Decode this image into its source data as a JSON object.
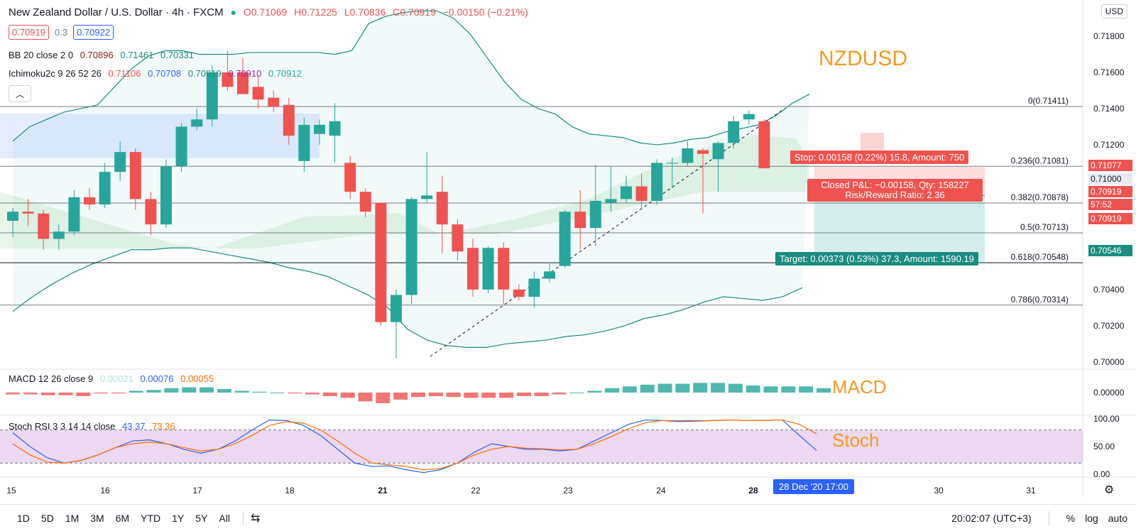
{
  "header": {
    "symbol": "New Zealand Dollar / U.S. Dollar · 4h · FXCM",
    "open": "O0.71069",
    "high": "H0.71225",
    "low": "L0.70836",
    "close": "C0.70919",
    "change": "−0.00150 (−0.21%)",
    "bid": "0.70919",
    "spread": "0.3",
    "ask": "0.70922"
  },
  "indicators": {
    "bb": {
      "name": "BB 20 close 2 0",
      "v1": "0.70896",
      "v2": "0.71461",
      "v3": "0.70331"
    },
    "ichimoku": {
      "name": "Ichimoku2c 9 26 52 26",
      "v1": "0.71106",
      "v2": "0.70708",
      "v3": "0.70919",
      "v4": "0.70910",
      "v5": "0.70912"
    },
    "macd": {
      "name": "MACD 12 26 close 9",
      "v1": "0.00021",
      "v2": "0.00076",
      "v3": "0.00055"
    },
    "stoch": {
      "name": "Stoch RSI 3 3 14 14 close",
      "v1": "43.37",
      "v2": "73.36"
    }
  },
  "labels": {
    "pair": "NZDUSD",
    "macd": "MACD",
    "stoch": "Stoch"
  },
  "currency": "USD",
  "colors": {
    "up": "#26a69a",
    "down": "#ef5350",
    "bb": "#1b8c7e",
    "label": "#f59a23",
    "blue": "#2962ff"
  },
  "fib": [
    {
      "label": "0(0.71411)",
      "price": 0.71411
    },
    {
      "label": "0.236(0.71081)",
      "price": 0.71081
    },
    {
      "label": "0.382(0.70878)",
      "price": 0.70878
    },
    {
      "label": "0.5(0.70713)",
      "price": 0.70713
    },
    {
      "label": "0.618(0.70548)",
      "price": 0.70548
    },
    {
      "label": "0.786(0.70314)",
      "price": 0.70314
    }
  ],
  "trade": {
    "stop": "Stop: 0.00158 (0.22%) 15.8, Amount: 750",
    "pnl": "Closed P&L: −0.00158, Qty: 158227",
    "rr": "Risk/Reward Ratio: 2.36",
    "target": "Target: 0.00373 (0.53%) 37.3, Amount: 1590.19"
  },
  "price_axis": {
    "ticks": [
      "0.71800",
      "0.71600",
      "0.71400",
      "0.71200",
      "0.71000",
      "0.70800",
      "0.70600",
      "0.70400",
      "0.70200",
      "0.70000"
    ],
    "tags": [
      {
        "text": "0.71077",
        "color": "#ef5350"
      },
      {
        "text": "0.71000",
        "color": "#e8eaf0"
      },
      {
        "text": "0.70919",
        "color": "#ef5350"
      },
      {
        "text": "57:52",
        "color": "#ef5350"
      },
      {
        "text": "0.70919",
        "color": "#ef5350"
      },
      {
        "text": "0.70546",
        "color": "#26a69a"
      }
    ],
    "macd_tick": "0.00000",
    "stoch_ticks": [
      "100.00",
      "50.00",
      "0.00"
    ]
  },
  "time_axis": {
    "ticks": [
      "15",
      "16",
      "17",
      "18",
      "21",
      "22",
      "23",
      "24",
      "28",
      "30",
      "31"
    ],
    "cursor_label": "28 Dec '20   17:00"
  },
  "bottom": {
    "timeframes": [
      "1D",
      "5D",
      "1M",
      "3M",
      "6M",
      "YTD",
      "1Y",
      "5Y",
      "All"
    ],
    "clock": "20:02:07 (UTC+3)",
    "percent": "%",
    "log": "log",
    "auto": "auto"
  },
  "chart_data": {
    "type": "candlestick",
    "timeframe": "4h",
    "candles": [
      {
        "o": 0.7078,
        "h": 0.7085,
        "l": 0.7069,
        "c": 0.7083
      },
      {
        "o": 0.7083,
        "h": 0.709,
        "l": 0.7075,
        "c": 0.7082
      },
      {
        "o": 0.7082,
        "h": 0.7084,
        "l": 0.7062,
        "c": 0.7068
      },
      {
        "o": 0.7068,
        "h": 0.7076,
        "l": 0.7062,
        "c": 0.7072
      },
      {
        "o": 0.7072,
        "h": 0.7095,
        "l": 0.707,
        "c": 0.7091
      },
      {
        "o": 0.7091,
        "h": 0.7096,
        "l": 0.7084,
        "c": 0.7087
      },
      {
        "o": 0.7087,
        "h": 0.711,
        "l": 0.7085,
        "c": 0.7105
      },
      {
        "o": 0.7105,
        "h": 0.7122,
        "l": 0.71,
        "c": 0.7116
      },
      {
        "o": 0.7116,
        "h": 0.7118,
        "l": 0.7084,
        "c": 0.709
      },
      {
        "o": 0.709,
        "h": 0.7094,
        "l": 0.707,
        "c": 0.7076
      },
      {
        "o": 0.7076,
        "h": 0.7112,
        "l": 0.7074,
        "c": 0.7108
      },
      {
        "o": 0.7108,
        "h": 0.7132,
        "l": 0.7105,
        "c": 0.713
      },
      {
        "o": 0.713,
        "h": 0.714,
        "l": 0.7128,
        "c": 0.7134
      },
      {
        "o": 0.7134,
        "h": 0.7164,
        "l": 0.713,
        "c": 0.716
      },
      {
        "o": 0.716,
        "h": 0.7172,
        "l": 0.715,
        "c": 0.7152
      },
      {
        "o": 0.716,
        "h": 0.7168,
        "l": 0.7148,
        "c": 0.7148
      },
      {
        "o": 0.7152,
        "h": 0.7158,
        "l": 0.714,
        "c": 0.7145
      },
      {
        "o": 0.7146,
        "h": 0.715,
        "l": 0.7138,
        "c": 0.7141
      },
      {
        "o": 0.7142,
        "h": 0.7146,
        "l": 0.712,
        "c": 0.7125
      },
      {
        "o": 0.7111,
        "h": 0.7135,
        "l": 0.7105,
        "c": 0.7131
      },
      {
        "o": 0.7126,
        "h": 0.7134,
        "l": 0.712,
        "c": 0.7131
      },
      {
        "o": 0.7125,
        "h": 0.7143,
        "l": 0.711,
        "c": 0.7133
      },
      {
        "o": 0.711,
        "h": 0.7114,
        "l": 0.709,
        "c": 0.7094
      },
      {
        "o": 0.7094,
        "h": 0.7096,
        "l": 0.708,
        "c": 0.7083
      },
      {
        "o": 0.7088,
        "h": 0.7088,
        "l": 0.702,
        "c": 0.7022
      },
      {
        "o": 0.7022,
        "h": 0.704,
        "l": 0.7002,
        "c": 0.7037
      },
      {
        "o": 0.7037,
        "h": 0.7091,
        "l": 0.7032,
        "c": 0.709
      },
      {
        "o": 0.709,
        "h": 0.7116,
        "l": 0.7088,
        "c": 0.7092
      },
      {
        "o": 0.7094,
        "h": 0.7103,
        "l": 0.706,
        "c": 0.7076
      },
      {
        "o": 0.7076,
        "h": 0.7079,
        "l": 0.7056,
        "c": 0.7061
      },
      {
        "o": 0.7063,
        "h": 0.7068,
        "l": 0.7036,
        "c": 0.704
      },
      {
        "o": 0.704,
        "h": 0.7064,
        "l": 0.7038,
        "c": 0.7063
      },
      {
        "o": 0.7063,
        "h": 0.7066,
        "l": 0.7032,
        "c": 0.704
      },
      {
        "o": 0.704,
        "h": 0.7043,
        "l": 0.7034,
        "c": 0.7036
      },
      {
        "o": 0.7036,
        "h": 0.705,
        "l": 0.703,
        "c": 0.7046
      },
      {
        "o": 0.7046,
        "h": 0.7055,
        "l": 0.7044,
        "c": 0.705
      },
      {
        "o": 0.7053,
        "h": 0.7084,
        "l": 0.7052,
        "c": 0.7083
      },
      {
        "o": 0.7083,
        "h": 0.7095,
        "l": 0.7062,
        "c": 0.7074
      },
      {
        "o": 0.7074,
        "h": 0.7109,
        "l": 0.7064,
        "c": 0.7089
      },
      {
        "o": 0.7088,
        "h": 0.7108,
        "l": 0.7083,
        "c": 0.709
      },
      {
        "o": 0.709,
        "h": 0.7103,
        "l": 0.7088,
        "c": 0.7097
      },
      {
        "o": 0.7097,
        "h": 0.7104,
        "l": 0.7085,
        "c": 0.7089
      },
      {
        "o": 0.7089,
        "h": 0.7112,
        "l": 0.7087,
        "c": 0.711
      },
      {
        "o": 0.711,
        "h": 0.7113,
        "l": 0.7096,
        "c": 0.711
      },
      {
        "o": 0.711,
        "h": 0.7122,
        "l": 0.7108,
        "c": 0.7118
      },
      {
        "o": 0.7117,
        "h": 0.7118,
        "l": 0.7082,
        "c": 0.7115
      },
      {
        "o": 0.7112,
        "h": 0.7122,
        "l": 0.7094,
        "c": 0.7121
      },
      {
        "o": 0.7121,
        "h": 0.7136,
        "l": 0.7118,
        "c": 0.7133
      },
      {
        "o": 0.7134,
        "h": 0.7139,
        "l": 0.7131,
        "c": 0.7137
      },
      {
        "o": 0.7133,
        "h": 0.7134,
        "l": 0.7107,
        "c": 0.7107
      }
    ],
    "bb_upper": [
      0.7122,
      0.713,
      0.7134,
      0.7138,
      0.714,
      0.7142,
      0.7152,
      0.7162,
      0.7169,
      0.7172,
      0.7172,
      0.717,
      0.717,
      0.717,
      0.7171,
      0.7171,
      0.7171,
      0.7171,
      0.7171,
      0.717,
      0.7172,
      0.7187,
      0.7191,
      0.7193,
      0.7194,
      0.7194,
      0.719,
      0.7181,
      0.7168,
      0.7155,
      0.7145,
      0.714,
      0.7137,
      0.713,
      0.7126,
      0.7125,
      0.7124,
      0.7121,
      0.712,
      0.7121,
      0.7123,
      0.7124,
      0.7127,
      0.7129,
      0.7131,
      0.7136,
      0.7143,
      0.7148
    ],
    "bb_lower": [
      0.7028,
      0.7036,
      0.7043,
      0.7049,
      0.7054,
      0.7058,
      0.7062,
      0.7062,
      0.7063,
      0.7063,
      0.7061,
      0.7059,
      0.7057,
      0.7055,
      0.7052,
      0.705,
      0.7047,
      0.7042,
      0.7037,
      0.703,
      0.7018,
      0.7012,
      0.7009,
      0.7008,
      0.7008,
      0.701,
      0.7011,
      0.7012,
      0.7014,
      0.7015,
      0.7017,
      0.702,
      0.7024,
      0.7026,
      0.7029,
      0.7033,
      0.7036,
      0.7035,
      0.7034,
      0.7036,
      0.7041
    ],
    "macd_hist": [
      -2e-05,
      -2e-05,
      -3e-05,
      -3e-05,
      -4e-05,
      -1e-05,
      -1e-05,
      2e-05,
      3e-05,
      5e-05,
      6e-05,
      6e-05,
      4e-05,
      2e-05,
      1e-05,
      0.0,
      -1e-05,
      -2e-05,
      -4e-05,
      -6e-05,
      -0.0001,
      -0.00012,
      -8e-05,
      -5e-05,
      -4e-05,
      -5e-05,
      -6e-05,
      -6e-05,
      -6e-05,
      -4e-05,
      -4e-05,
      -2e-05,
      0.0,
      2e-05,
      5e-05,
      7e-05,
      9e-05,
      0.0001,
      0.0001,
      0.00011,
      0.00011,
      0.0001,
      8e-05,
      7e-05,
      7e-05,
      7e-05,
      5e-05
    ],
    "stoch_k": [
      75,
      50,
      30,
      20,
      25,
      35,
      48,
      60,
      62,
      55,
      45,
      38,
      45,
      60,
      80,
      98,
      97,
      88,
      70,
      45,
      20,
      14,
      15,
      8,
      3,
      8,
      20,
      40,
      55,
      50,
      45,
      45,
      42,
      45,
      60,
      75,
      90,
      98,
      97,
      95,
      96,
      97,
      98,
      97,
      97,
      98,
      70,
      43
    ],
    "stoch_d": [
      55,
      35,
      22,
      20,
      25,
      35,
      48,
      55,
      58,
      55,
      48,
      42,
      45,
      55,
      70,
      88,
      95,
      92,
      80,
      60,
      38,
      20,
      17,
      14,
      8,
      10,
      20,
      35,
      45,
      50,
      47,
      46,
      44,
      45,
      55,
      68,
      82,
      93,
      97,
      97,
      97,
      97,
      98,
      97,
      97,
      98,
      90,
      73
    ],
    "price_range": [
      0.6996,
      0.72
    ],
    "macd_range": [
      -0.00025,
      0.00025
    ],
    "stoch_range": [
      0,
      100
    ]
  }
}
